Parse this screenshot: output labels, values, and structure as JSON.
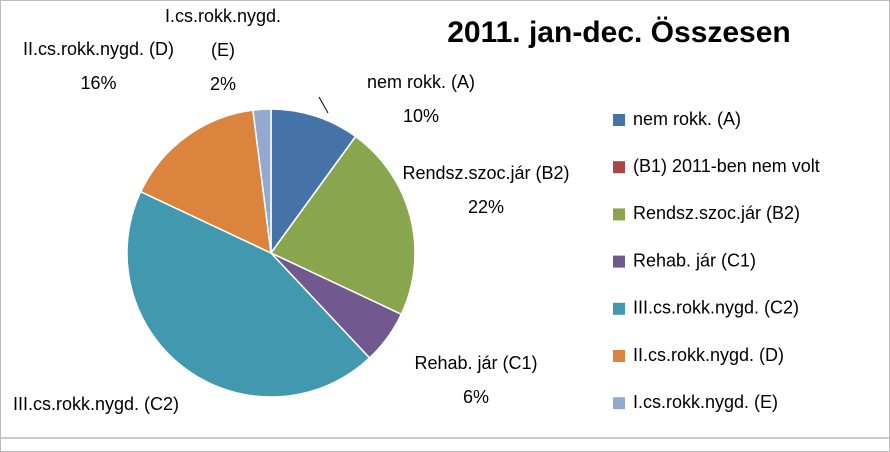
{
  "chart_data": {
    "type": "pie",
    "title": "2011. jan-dec. Összesen",
    "categories": [
      "nem rokk. (A)",
      "(B1) 2011-ben nem volt",
      "Rendsz.szoc.jár (B2)",
      "Rehab. jár (C1)",
      "III.cs.rokk.nygd. (C2)",
      "II.cs.rokk.nygd. (D)",
      "I.cs.rokk.nygd. (E)"
    ],
    "values": [
      10,
      0,
      22,
      6,
      44,
      16,
      2
    ],
    "value_labels": [
      "10%",
      null,
      "22%",
      "6%",
      null,
      "16%",
      "2%"
    ],
    "colors": [
      "#4572a7",
      "#aa4643",
      "#89a54e",
      "#71588f",
      "#4198af",
      "#db843d",
      "#93a9cf"
    ],
    "legend": "right"
  }
}
